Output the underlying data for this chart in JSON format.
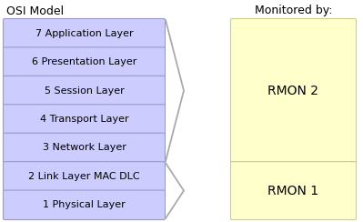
{
  "osi_layers": [
    "7 Application Layer",
    "6 Presentation Layer",
    "5 Session Layer",
    "4 Transport Layer",
    "3 Network Layer",
    "2 Link Layer MAC DLC",
    "1 Physical Layer"
  ],
  "layer_box_color": "#ccccff",
  "layer_box_edge": "#9999cc",
  "rmon_box_color": "#ffffcc",
  "rmon_box_edge": "#cccc88",
  "title_left": "OSI Model",
  "title_right": "Monitored by:",
  "bg_color": "#ffffff",
  "title_fontsize": 9,
  "layer_fontsize": 8,
  "rmon_fontsize": 10,
  "brace_color": "#aaaaaa"
}
